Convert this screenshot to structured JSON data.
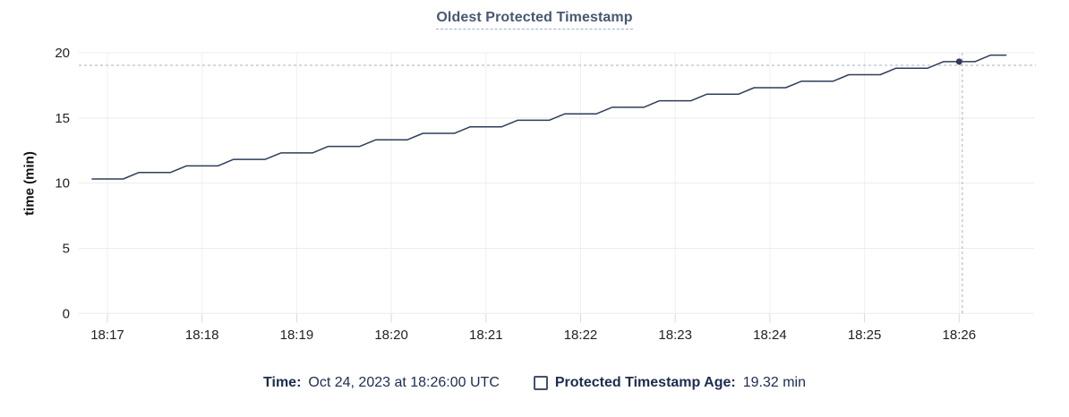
{
  "chart_data": {
    "type": "line",
    "title": "Oldest Protected Timestamp",
    "ylabel": "time (min)",
    "ylim": [
      0,
      20
    ],
    "y_ticks": [
      0,
      5,
      10,
      15,
      20
    ],
    "x_ticks": [
      {
        "t": 0,
        "label": "18:17"
      },
      {
        "t": 60,
        "label": "18:18"
      },
      {
        "t": 120,
        "label": "18:19"
      },
      {
        "t": 180,
        "label": "18:20"
      },
      {
        "t": 240,
        "label": "18:21"
      },
      {
        "t": 300,
        "label": "18:22"
      },
      {
        "t": 360,
        "label": "18:23"
      },
      {
        "t": 420,
        "label": "18:24"
      },
      {
        "t": 480,
        "label": "18:25"
      },
      {
        "t": 540,
        "label": "18:26"
      }
    ],
    "grid": true,
    "series": [
      {
        "name": "Protected Timestamp Age",
        "unit": "min",
        "points": [
          [
            -10,
            10.32
          ],
          [
            10,
            10.32
          ],
          [
            20,
            10.82
          ],
          [
            40,
            10.82
          ],
          [
            50,
            11.32
          ],
          [
            70,
            11.32
          ],
          [
            80,
            11.82
          ],
          [
            100,
            11.82
          ],
          [
            110,
            12.32
          ],
          [
            130,
            12.32
          ],
          [
            140,
            12.82
          ],
          [
            160,
            12.82
          ],
          [
            170,
            13.32
          ],
          [
            190,
            13.32
          ],
          [
            200,
            13.82
          ],
          [
            220,
            13.82
          ],
          [
            230,
            14.32
          ],
          [
            250,
            14.32
          ],
          [
            260,
            14.82
          ],
          [
            280,
            14.82
          ],
          [
            290,
            15.32
          ],
          [
            310,
            15.32
          ],
          [
            320,
            15.82
          ],
          [
            340,
            15.82
          ],
          [
            350,
            16.32
          ],
          [
            370,
            16.32
          ],
          [
            380,
            16.82
          ],
          [
            400,
            16.82
          ],
          [
            410,
            17.32
          ],
          [
            430,
            17.32
          ],
          [
            440,
            17.82
          ],
          [
            460,
            17.82
          ],
          [
            470,
            18.32
          ],
          [
            490,
            18.32
          ],
          [
            500,
            18.82
          ],
          [
            520,
            18.82
          ],
          [
            530,
            19.32
          ],
          [
            550,
            19.32
          ],
          [
            560,
            19.82
          ],
          [
            570,
            19.82
          ]
        ]
      }
    ],
    "hover": {
      "t": 540,
      "time": "18:26:00",
      "value": 19.32,
      "cursor_t": 542,
      "cursor_value": 19.04
    },
    "legend": {
      "time_label": "Time:",
      "time_value": "Oct 24, 2023 at 18:26:00 UTC",
      "series_label": "Protected Timestamp Age:",
      "series_value": "19.32 min"
    }
  },
  "colors": {
    "background": "#ffffff",
    "title": "#475872",
    "title_underline": "#9fb0c7",
    "series_line": "#2e3d59",
    "hover_point": "#2e3d59",
    "crosshair": "#a3b2c6",
    "grid_horizontal": "#ececec",
    "grid_vertical": "#f0f0f0",
    "axis_tick": "#d9d9d9",
    "axis_text": "#222222",
    "legend_text": "#1c2c50",
    "checkbox_border": "#43506b"
  }
}
